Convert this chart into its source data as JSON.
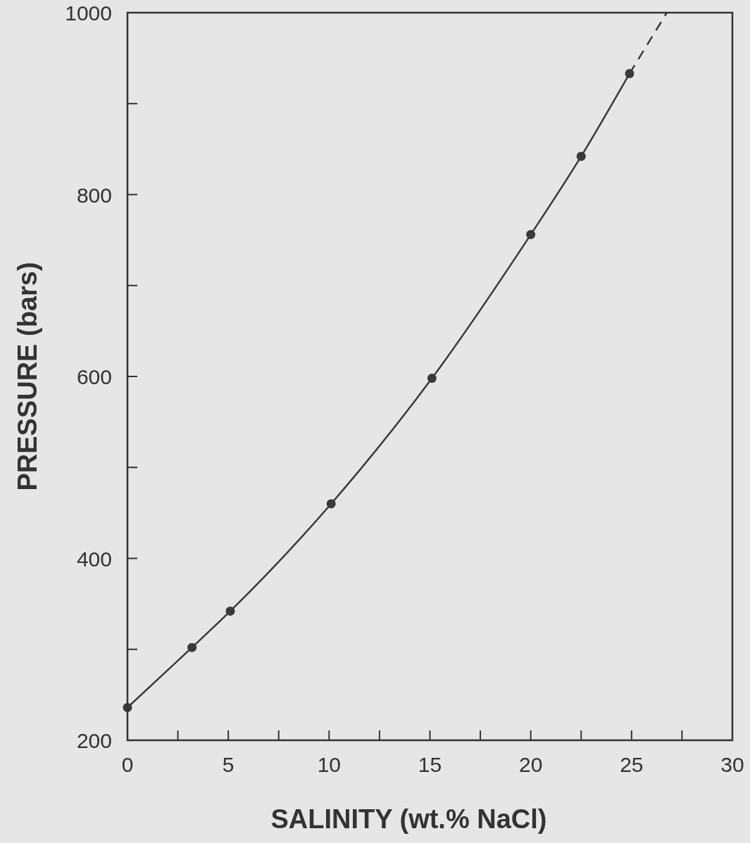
{
  "chart_data": {
    "type": "line",
    "xlabel": "SALINITY (wt.% NaCl)",
    "ylabel": "PRESSURE (bars)",
    "xlim": [
      0,
      30
    ],
    "ylim": [
      200,
      1000
    ],
    "xticks": [
      0,
      {
        "value": 2.5,
        "label": null
      },
      5,
      {
        "value": 7.5,
        "label": null
      },
      10,
      {
        "value": 12.5,
        "label": null
      },
      15,
      {
        "value": 17.5,
        "label": null
      },
      20,
      {
        "value": 22.5,
        "label": null
      },
      25,
      {
        "value": 27.5,
        "label": null
      },
      30
    ],
    "yticks": [
      200,
      {
        "value": 300,
        "label": null
      },
      400,
      {
        "value": 500,
        "label": null
      },
      600,
      {
        "value": 700,
        "label": null
      },
      800,
      {
        "value": 900,
        "label": null
      },
      1000
    ],
    "grid": false,
    "series": [
      {
        "color": "#3a3a3a",
        "line_style": "solid",
        "marker": "none",
        "x": [
          0,
          3.2,
          5.1,
          10.1,
          15.1,
          20,
          22.5,
          24.9
        ],
        "values": [
          236,
          302,
          342,
          460,
          598,
          756,
          842,
          933
        ]
      },
      {
        "color": "#3a3a3a",
        "line_style": "dashed",
        "marker": "none",
        "x": [
          24.9,
          26.75
        ],
        "values": [
          933,
          1000
        ]
      },
      {
        "type": "scatter",
        "color": "#3a3a3a",
        "marker": "circle",
        "x": [
          0,
          3.2,
          5.1,
          10.1,
          15.1,
          20,
          22.5,
          24.9
        ],
        "values": [
          236,
          302,
          342,
          460,
          598,
          756,
          842,
          933
        ]
      }
    ]
  }
}
